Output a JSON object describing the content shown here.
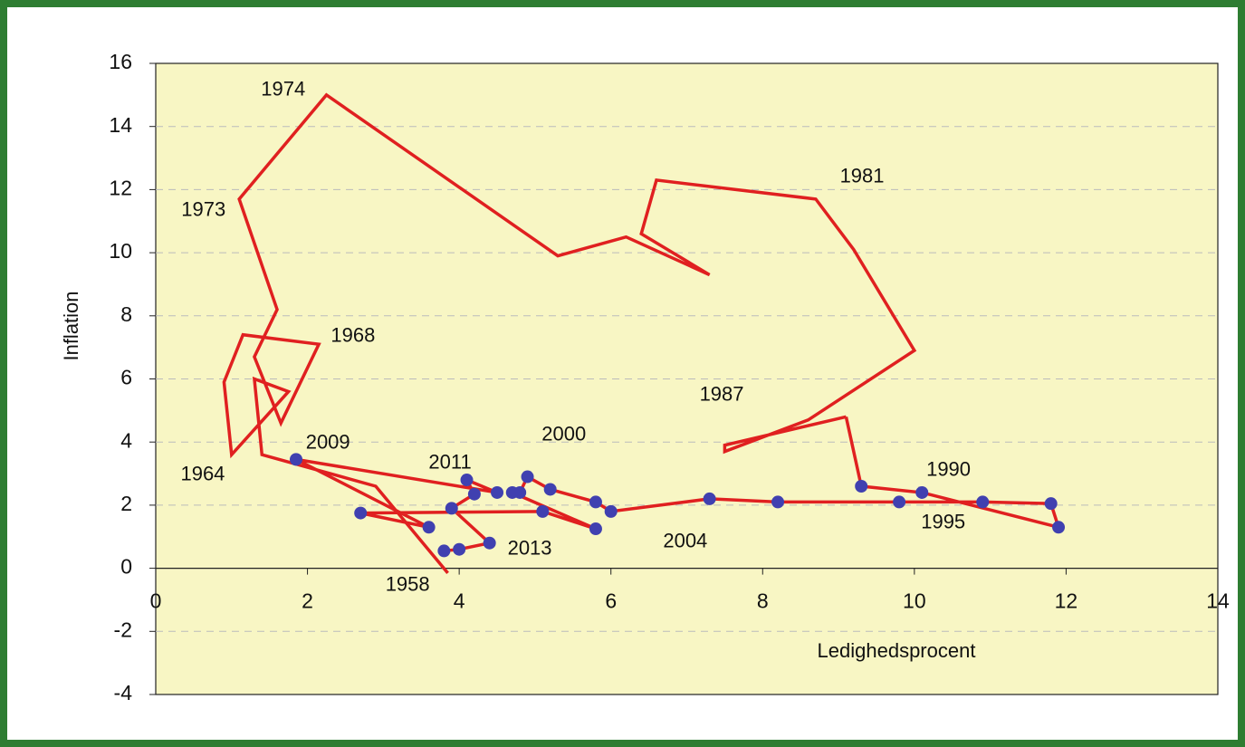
{
  "chart_data": {
    "type": "line",
    "xlabel": "Ledighedsprocent",
    "ylabel": "Inflation",
    "xlim": [
      0,
      14
    ],
    "xticks": [
      0,
      2,
      4,
      6,
      8,
      10,
      12,
      14
    ],
    "ylim": [
      -4,
      16
    ],
    "yticks": [
      -4,
      -2,
      0,
      2,
      4,
      6,
      8,
      10,
      12,
      14,
      16
    ],
    "grid": true,
    "series": [
      {
        "color": "#e02020",
        "markers": false,
        "x": [
          3.85,
          2.9,
          1.4,
          1.3,
          1.75,
          1.0,
          0.9,
          1.15,
          2.15,
          1.65,
          1.3,
          1.6,
          1.1,
          2.25,
          5.3,
          6.2,
          7.3,
          6.4,
          6.6,
          8.7,
          9.2,
          10.0,
          8.6,
          7.5,
          7.5,
          9.1
        ],
        "values": [
          -0.15,
          2.6,
          3.6,
          6.0,
          5.6,
          3.6,
          5.9,
          7.4,
          7.1,
          4.6,
          6.7,
          8.2,
          11.7,
          15.0,
          9.9,
          10.5,
          9.3,
          10.6,
          12.3,
          11.7,
          10.1,
          6.9,
          4.7,
          3.7,
          3.9,
          4.8
        ]
      },
      {
        "color": "#e02020",
        "markers": true,
        "marker_color": "#4040b0",
        "x": [
          9.3,
          10.1,
          11.9,
          11.8,
          10.9,
          9.8,
          8.2,
          7.3,
          6.0,
          5.8,
          5.2,
          4.9,
          4.8,
          4.7,
          5.8,
          5.1,
          2.7,
          3.6,
          1.85,
          4.5,
          4.1,
          4.2,
          3.9,
          4.4,
          4.0,
          3.8
        ],
        "values": [
          2.6,
          2.4,
          1.3,
          2.05,
          2.1,
          2.1,
          2.1,
          2.2,
          1.8,
          2.1,
          2.5,
          2.9,
          2.4,
          2.4,
          1.25,
          1.8,
          1.75,
          1.3,
          3.45,
          2.4,
          2.8,
          2.35,
          1.9,
          0.8,
          0.6,
          0.55
        ]
      }
    ],
    "annotations": [
      {
        "text": "1974",
        "x": 1.68,
        "y": 15.15
      },
      {
        "text": "1973",
        "x": 0.63,
        "y": 11.33
      },
      {
        "text": "1981",
        "x": 9.31,
        "y": 12.4
      },
      {
        "text": "1968",
        "x": 2.6,
        "y": 7.35
      },
      {
        "text": "1987",
        "x": 7.46,
        "y": 5.48
      },
      {
        "text": "2009",
        "x": 2.27,
        "y": 3.96
      },
      {
        "text": "2000",
        "x": 5.38,
        "y": 4.22
      },
      {
        "text": "2011",
        "x": 3.88,
        "y": 3.33
      },
      {
        "text": "1964",
        "x": 0.62,
        "y": 2.96
      },
      {
        "text": "1990",
        "x": 10.45,
        "y": 3.1
      },
      {
        "text": "1995",
        "x": 10.38,
        "y": 1.43
      },
      {
        "text": "2013",
        "x": 4.93,
        "y": 0.6
      },
      {
        "text": "2004",
        "x": 6.98,
        "y": 0.83
      },
      {
        "text": "1958",
        "x": 3.32,
        "y": -0.55
      }
    ]
  }
}
